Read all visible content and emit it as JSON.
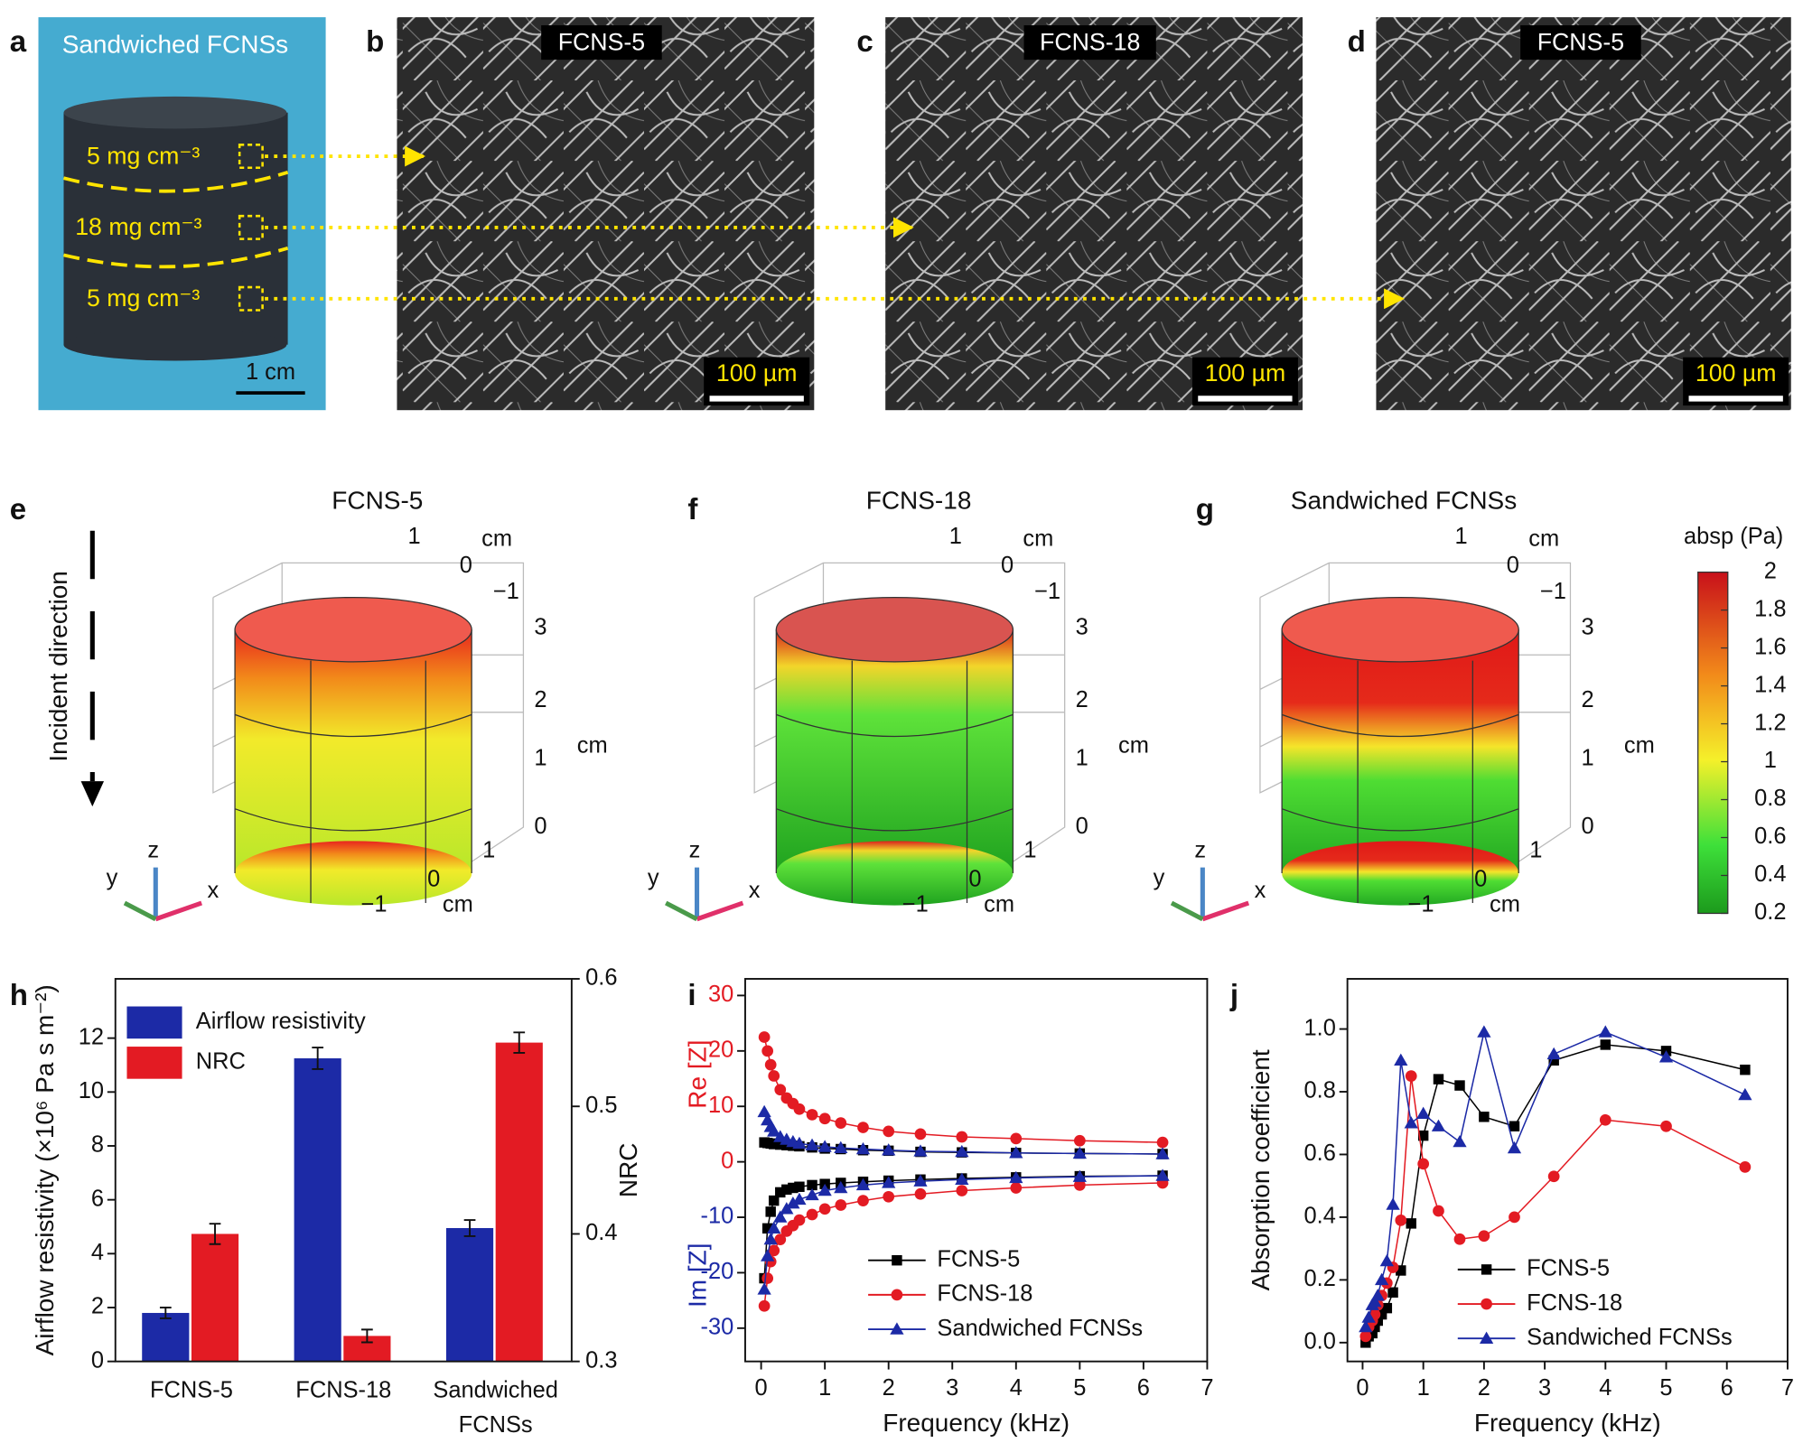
{
  "panels": {
    "letters": [
      "a",
      "b",
      "c",
      "d",
      "e",
      "f",
      "g",
      "h",
      "i",
      "j"
    ],
    "a": {
      "title": "Sandwiched FCNSs",
      "layers": [
        "5 mg cm⁻³",
        "18 mg cm⁻³",
        "5 mg cm⁻³"
      ],
      "scale_bar": "1 cm"
    },
    "sem": [
      {
        "title": "FCNS-5",
        "scale_bar": "100 µm"
      },
      {
        "title": "FCNS-18",
        "scale_bar": "100 µm"
      },
      {
        "title": "FCNS-5",
        "scale_bar": "100 µm"
      }
    ],
    "simulation": {
      "incident": "Incident direction",
      "titles": [
        "FCNS-5",
        "FCNS-18",
        "Sandwiched FCNSs"
      ],
      "axis_ticks": [
        "1",
        "0",
        "−1",
        "3",
        "2",
        "1",
        "0",
        "1",
        "0",
        "−1"
      ],
      "axis_unit": "cm",
      "triad": [
        "z",
        "y",
        "x"
      ]
    },
    "colorbar": {
      "label": "absp (Pa)",
      "lim": [
        0.2,
        2
      ],
      "ticks": [
        0.2,
        0.4,
        0.6,
        0.8,
        1,
        1.2,
        1.4,
        1.6,
        1.8,
        2
      ]
    }
  },
  "chart_data": [
    {
      "type": "bar",
      "categories": [
        "FCNS-5",
        "FCNS-18",
        "Sandwiched FCNSs"
      ],
      "y_label": "Airflow resistivity (×10⁶ Pa s m⁻²)",
      "y2_label": "NRC",
      "ylim": [
        0,
        14.2
      ],
      "yticks": [
        0,
        2,
        4,
        6,
        8,
        10,
        12
      ],
      "y2lim": [
        0.3,
        0.6
      ],
      "y2ticks": [
        0.3,
        0.4,
        0.5,
        0.6
      ],
      "legend": "upper left",
      "series": [
        {
          "name": "Airflow resistivity",
          "color": "#1c2aa6",
          "values": [
            1.8,
            11.25,
            4.95
          ],
          "errors": [
            0.2,
            0.4,
            0.3
          ]
        },
        {
          "name": "NRC",
          "color": "#e31b23",
          "axis": "y2",
          "values": [
            0.4,
            0.32,
            0.55
          ],
          "errors": [
            0.008,
            0.005,
            0.008
          ]
        }
      ]
    },
    {
      "type": "impedance",
      "x_label": "Frequency (kHz)",
      "y_labels": [
        {
          "text": "Re [Z]",
          "color": "#e31b23"
        },
        {
          "text": "Im [Z]",
          "color": "#1c2aa6"
        }
      ],
      "xlim": [
        -0.25,
        7
      ],
      "xticks": [
        0,
        1,
        2,
        3,
        4,
        5,
        6,
        7
      ],
      "ylim": [
        -36,
        33
      ],
      "yticks": [
        30,
        20,
        10,
        0,
        -10,
        -20,
        -30
      ],
      "legend": "lower right",
      "x": [
        0.05,
        0.1,
        0.15,
        0.2,
        0.3,
        0.4,
        0.5,
        0.6,
        0.8,
        1,
        1.25,
        1.6,
        2,
        2.5,
        3.15,
        4,
        5,
        6.3
      ],
      "series": [
        {
          "name": "FCNS-5",
          "color": "#000000",
          "marker": "square",
          "values": [
            3.5,
            3.4,
            3.3,
            3.2,
            3.1,
            3,
            2.9,
            2.8,
            2.6,
            2.4,
            2.3,
            2.1,
            2,
            1.8,
            1.7,
            1.6,
            1.5,
            1.4
          ],
          "im_values": [
            -21,
            -12,
            -9,
            -7,
            -5.5,
            -5,
            -4.7,
            -4.5,
            -4.2,
            -4,
            -3.8,
            -3.6,
            -3.4,
            -3.2,
            -3,
            -2.8,
            -2.6,
            -2.5
          ]
        },
        {
          "name": "FCNS-18",
          "color": "#e31b23",
          "marker": "circle",
          "values": [
            22.5,
            20,
            17.5,
            15.5,
            13,
            11.5,
            10.5,
            9.5,
            8.5,
            7.8,
            7,
            6.2,
            5.5,
            5,
            4.5,
            4.2,
            3.8,
            3.5
          ],
          "im_values": [
            -26,
            -21,
            -18,
            -16,
            -14,
            -12.5,
            -11.5,
            -10.5,
            -9.5,
            -8.5,
            -7.8,
            -7,
            -6.3,
            -5.8,
            -5.2,
            -4.7,
            -4.2,
            -3.8
          ]
        },
        {
          "name": "Sandwiched FCNSs",
          "color": "#1c2aa6",
          "marker": "triangle",
          "values": [
            9,
            7.5,
            6.3,
            5.5,
            4.5,
            4,
            3.6,
            3.3,
            3,
            2.7,
            2.5,
            2.3,
            2.1,
            1.9,
            1.8,
            1.6,
            1.5,
            1.4
          ],
          "im_values": [
            -23,
            -17,
            -14,
            -12,
            -10,
            -8.5,
            -7.5,
            -6.8,
            -6,
            -5.2,
            -4.7,
            -4.2,
            -3.8,
            -3.5,
            -3.2,
            -2.9,
            -2.7,
            -2.5
          ]
        }
      ]
    },
    {
      "type": "line",
      "x_label": "Frequency (kHz)",
      "y_label": "Absorption coefficient",
      "xlim": [
        -0.25,
        7
      ],
      "xticks": [
        0,
        1,
        2,
        3,
        4,
        5,
        6,
        7
      ],
      "ylim": [
        -0.06,
        1.16
      ],
      "yticks": [
        {
          "value": 0,
          "label": "0.0"
        },
        {
          "value": 0.2,
          "label": "0.2"
        },
        {
          "value": 0.4,
          "label": "0.4"
        },
        {
          "value": 0.6,
          "label": "0.6"
        },
        {
          "value": 0.8,
          "label": "0.8"
        },
        {
          "value": 1,
          "label": "1.0"
        }
      ],
      "legend": "lower right",
      "x": [
        0.05,
        0.1,
        0.16,
        0.2,
        0.25,
        0.315,
        0.4,
        0.5,
        0.63,
        0.8,
        1,
        1.25,
        1.6,
        2,
        2.5,
        3.15,
        4,
        5,
        6.3
      ],
      "series": [
        {
          "name": "FCNS-5",
          "color": "#000000",
          "marker": "square",
          "values": [
            0,
            0.02,
            0.03,
            0.05,
            0.07,
            0.09,
            0.11,
            0.16,
            0.23,
            0.38,
            0.66,
            0.84,
            0.82,
            0.72,
            0.69,
            0.9,
            0.95,
            0.93,
            0.87
          ]
        },
        {
          "name": "FCNS-18",
          "color": "#e31b23",
          "marker": "circle",
          "values": [
            0.02,
            0.05,
            0.07,
            0.09,
            0.12,
            0.15,
            0.19,
            0.24,
            0.39,
            0.85,
            0.57,
            0.42,
            0.33,
            0.34,
            0.4,
            0.53,
            0.71,
            0.69,
            0.56
          ]
        },
        {
          "name": "Sandwiched FCNSs",
          "color": "#1c2aa6",
          "marker": "triangle",
          "values": [
            0.05,
            0.08,
            0.12,
            0.13,
            0.15,
            0.2,
            0.26,
            0.44,
            0.9,
            0.7,
            0.73,
            0.69,
            0.64,
            0.99,
            0.62,
            0.92,
            0.99,
            0.91,
            0.79
          ]
        }
      ]
    }
  ]
}
